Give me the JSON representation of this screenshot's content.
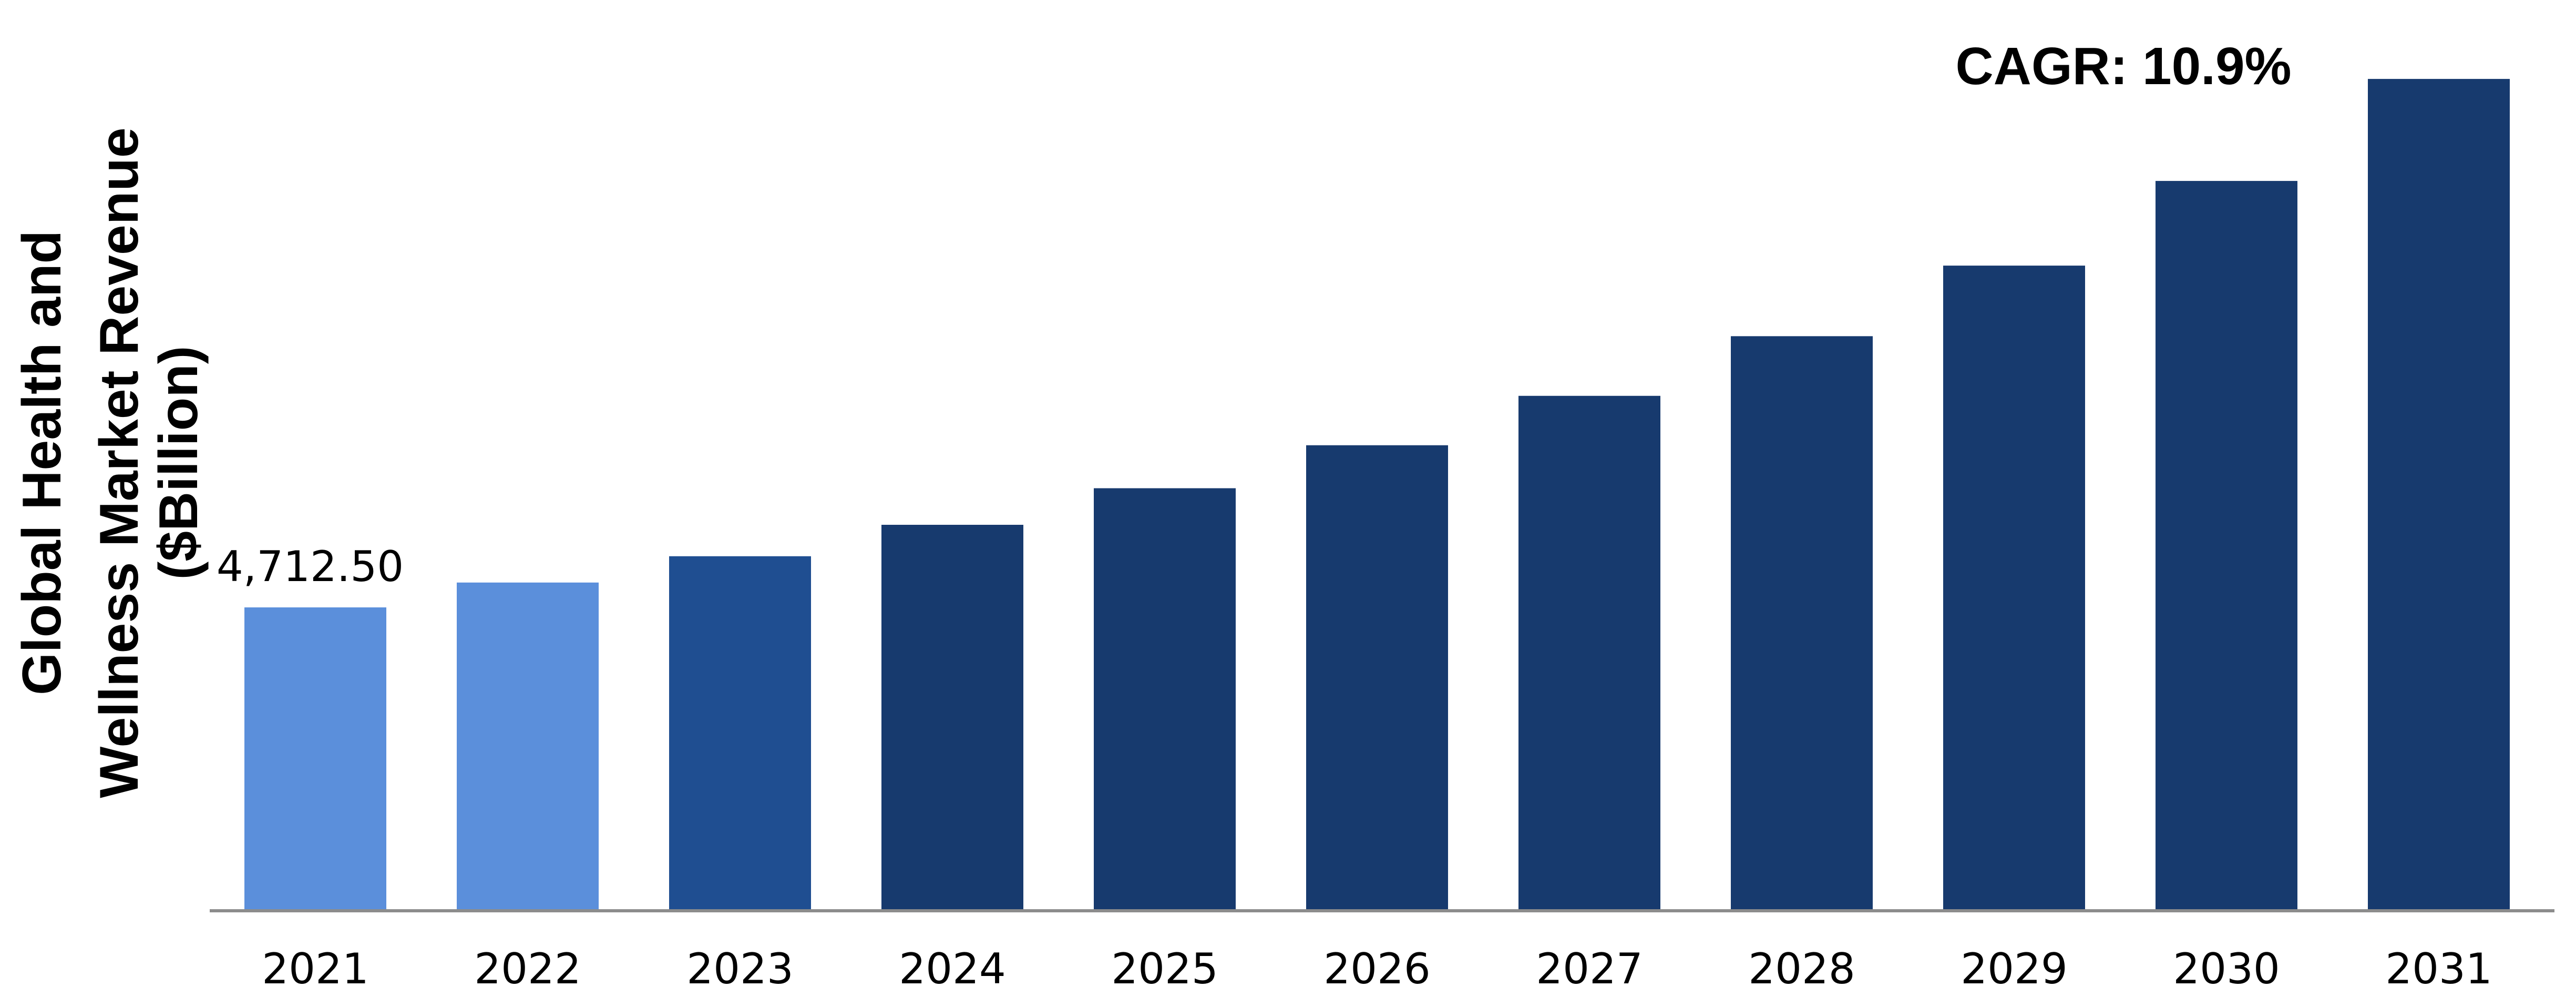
{
  "chart_data": {
    "type": "bar",
    "title": "",
    "xlabel": "",
    "ylabel_lines": [
      "Global Health and",
      "Wellness Market Revenue",
      "($Billion)"
    ],
    "categories": [
      "2021",
      "2022",
      "2023",
      "2024",
      "2025",
      "2026",
      "2027",
      "2028",
      "2029",
      "2030",
      "2031"
    ],
    "values": [
      4712.5,
      5100,
      5510,
      6000,
      6570,
      7240,
      8010,
      8940,
      10040,
      11360,
      12950
    ],
    "ylim": [
      0,
      14000
    ],
    "grid": false,
    "data_labels": [
      {
        "category": "2021",
        "text": "4,712.50"
      }
    ],
    "annotation": "CAGR: 10.9%",
    "colors": [
      "#5B8FDB",
      "#5B8FDB",
      "#1F4E91",
      "#173A6E",
      "#173A6E",
      "#173A6E",
      "#173A6E",
      "#173A6E",
      "#173A6E",
      "#173A6E",
      "#173A6E"
    ],
    "axis_color": "#8C8C8C"
  }
}
